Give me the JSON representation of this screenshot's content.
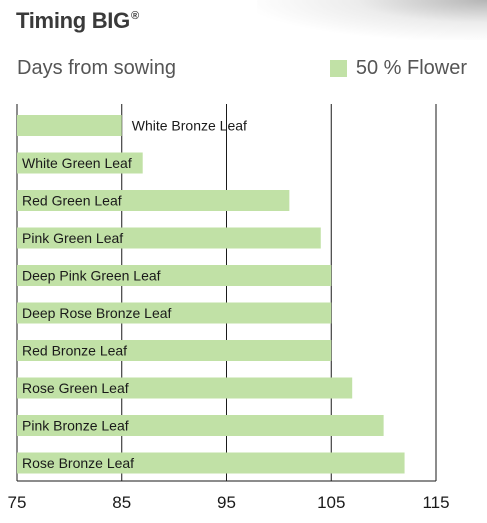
{
  "header": {
    "title": "Timing BIG",
    "title_mark": "®",
    "subtitle": "Days from sowing"
  },
  "legend": {
    "label": "50 % Flower",
    "color": "#c1e1a6"
  },
  "chart_data": {
    "type": "bar",
    "orientation": "horizontal",
    "title": "Timing BIG®",
    "xlabel": "Days from sowing",
    "ylabel": "",
    "xlim": [
      75,
      115
    ],
    "xticks": [
      75,
      85,
      95,
      105,
      115
    ],
    "grid": true,
    "legend_position": "top-right",
    "categories": [
      "White Bronze Leaf",
      "White Green Leaf",
      "Red Green Leaf",
      "Pink Green Leaf",
      "Deep Pink Green Leaf",
      "Deep Rose Bronze Leaf",
      "Red Bronze Leaf",
      "Rose Green Leaf",
      "Pink Bronze Leaf",
      "Rose Bronze Leaf"
    ],
    "series": [
      {
        "name": "50 % Flower",
        "color": "#c1e1a6",
        "values": [
          85,
          87,
          101,
          104,
          105,
          105,
          105,
          107,
          110,
          112
        ]
      }
    ]
  }
}
